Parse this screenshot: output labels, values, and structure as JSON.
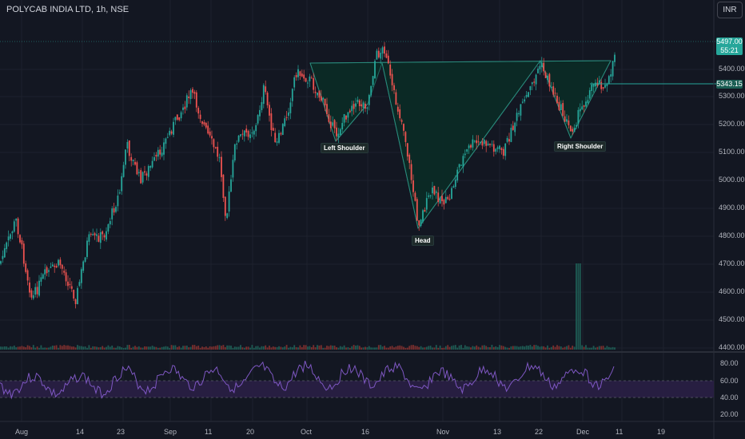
{
  "header": {
    "symbol": "POLYCAB INDIA LTD, 1h, NSE",
    "currency_button": "INR"
  },
  "price_axis": {
    "labels": [
      "5400.00",
      "5300.00",
      "5200.00",
      "5100.00",
      "5000.00",
      "4900.00",
      "4800.00",
      "4700.00",
      "4600.00",
      "4500.00",
      "4400.00"
    ]
  },
  "last_price": {
    "value": "5497.00",
    "countdown": "55:21",
    "color": "#26a69a"
  },
  "level_tag": {
    "value": "5343.15",
    "color": "#26a69a"
  },
  "rsi_axis": {
    "labels": [
      "80.00",
      "60.00",
      "40.00",
      "20.00"
    ]
  },
  "time_axis": {
    "labels": [
      "Aug",
      "14",
      "23",
      "Sep",
      "11",
      "20",
      "Oct",
      "16",
      "Nov",
      "13",
      "22",
      "Dec",
      "11",
      "19"
    ]
  },
  "pattern_labels": {
    "left_shoulder": "Left Shoulder",
    "head": "Head",
    "right_shoulder": "Right Shoulder"
  },
  "colors": {
    "up": "#26a69a",
    "down": "#ef5350",
    "rsi": "#7e57c2",
    "pattern_fill": "#0b2a26"
  }
}
